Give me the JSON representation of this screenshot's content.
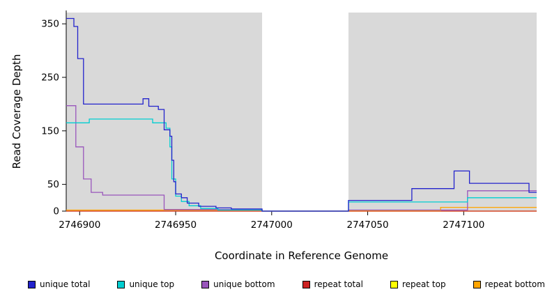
{
  "chart_data": {
    "type": "line",
    "title": "",
    "xlabel": "Coordinate in Reference Genome",
    "ylabel": "Read Coverage Depth",
    "xlim": [
      2746893,
      2747138
    ],
    "ylim": [
      0,
      375
    ],
    "grid": false,
    "legend_position": "bottom",
    "band_color": "#d9d9d9",
    "bands": [
      {
        "x1": 2746893,
        "x2": 2746995
      },
      {
        "x1": 2747040,
        "x2": 2747138
      }
    ],
    "xticks": [
      {
        "value": 2746900,
        "label": "2746900"
      },
      {
        "value": 2746950,
        "label": "2746950"
      },
      {
        "value": 2747000,
        "label": "2747000"
      },
      {
        "value": 2747050,
        "label": "2747050"
      },
      {
        "value": 2747100,
        "label": "2747100"
      }
    ],
    "yticks": [
      {
        "value": 0,
        "label": "0"
      },
      {
        "value": 50,
        "label": "50"
      },
      {
        "value": 150,
        "label": "150"
      },
      {
        "value": 250,
        "label": "250"
      },
      {
        "value": 350,
        "label": "350"
      }
    ],
    "series": [
      {
        "id": "repeat-top",
        "name": "repeat top",
        "color": "#ffff00",
        "points": [
          [
            2746893,
            0
          ],
          [
            2747138,
            0
          ]
        ]
      },
      {
        "id": "repeat-total",
        "name": "repeat total",
        "color": "#cc2222",
        "points": [
          [
            2746893,
            0
          ],
          [
            2747138,
            0
          ]
        ]
      },
      {
        "id": "repeat-bottom",
        "name": "repeat bottom",
        "color": "#ffa500",
        "points": [
          [
            2746893,
            2
          ],
          [
            2746995,
            2
          ],
          [
            2746995,
            0
          ],
          [
            2747040,
            0
          ],
          [
            2747040,
            1
          ],
          [
            2747088,
            1
          ],
          [
            2747088,
            7
          ],
          [
            2747138,
            7
          ]
        ]
      },
      {
        "id": "unique-bottom",
        "name": "unique bottom",
        "color": "#9955bb",
        "points": [
          [
            2746893,
            197
          ],
          [
            2746898,
            197
          ],
          [
            2746898,
            120
          ],
          [
            2746902,
            120
          ],
          [
            2746902,
            60
          ],
          [
            2746906,
            60
          ],
          [
            2746906,
            35
          ],
          [
            2746912,
            35
          ],
          [
            2746912,
            30
          ],
          [
            2746944,
            30
          ],
          [
            2746944,
            3
          ],
          [
            2746995,
            3
          ],
          [
            2746995,
            0
          ],
          [
            2747040,
            0
          ],
          [
            2747040,
            2
          ],
          [
            2747102,
            2
          ],
          [
            2747102,
            38
          ],
          [
            2747138,
            38
          ]
        ]
      },
      {
        "id": "unique-top",
        "name": "unique top",
        "color": "#00ced1",
        "points": [
          [
            2746893,
            165
          ],
          [
            2746905,
            165
          ],
          [
            2746905,
            172
          ],
          [
            2746938,
            172
          ],
          [
            2746938,
            165
          ],
          [
            2746945,
            165
          ],
          [
            2746945,
            155
          ],
          [
            2746947,
            155
          ],
          [
            2746947,
            120
          ],
          [
            2746948,
            120
          ],
          [
            2746948,
            60
          ],
          [
            2746950,
            60
          ],
          [
            2746950,
            28
          ],
          [
            2746953,
            28
          ],
          [
            2746953,
            18
          ],
          [
            2746957,
            18
          ],
          [
            2746957,
            10
          ],
          [
            2746963,
            10
          ],
          [
            2746963,
            5
          ],
          [
            2746972,
            5
          ],
          [
            2746972,
            2
          ],
          [
            2746995,
            2
          ],
          [
            2746995,
            0
          ],
          [
            2747040,
            0
          ],
          [
            2747040,
            17
          ],
          [
            2747102,
            17
          ],
          [
            2747102,
            25
          ],
          [
            2747138,
            25
          ]
        ]
      },
      {
        "id": "unique-total",
        "name": "unique total",
        "color": "#2222cc",
        "points": [
          [
            2746893,
            360
          ],
          [
            2746897,
            360
          ],
          [
            2746897,
            345
          ],
          [
            2746899,
            345
          ],
          [
            2746899,
            285
          ],
          [
            2746902,
            285
          ],
          [
            2746902,
            200
          ],
          [
            2746933,
            200
          ],
          [
            2746933,
            210
          ],
          [
            2746936,
            210
          ],
          [
            2746936,
            196
          ],
          [
            2746941,
            196
          ],
          [
            2746941,
            190
          ],
          [
            2746944,
            190
          ],
          [
            2746944,
            152
          ],
          [
            2746947,
            152
          ],
          [
            2746947,
            140
          ],
          [
            2746948,
            140
          ],
          [
            2746948,
            95
          ],
          [
            2746949,
            95
          ],
          [
            2746949,
            55
          ],
          [
            2746950,
            55
          ],
          [
            2746950,
            32
          ],
          [
            2746953,
            32
          ],
          [
            2746953,
            25
          ],
          [
            2746956,
            25
          ],
          [
            2746956,
            15
          ],
          [
            2746962,
            15
          ],
          [
            2746962,
            9
          ],
          [
            2746971,
            9
          ],
          [
            2746971,
            6
          ],
          [
            2746979,
            6
          ],
          [
            2746979,
            4
          ],
          [
            2746995,
            4
          ],
          [
            2746995,
            0
          ],
          [
            2747040,
            0
          ],
          [
            2747040,
            20
          ],
          [
            2747073,
            20
          ],
          [
            2747073,
            42
          ],
          [
            2747095,
            42
          ],
          [
            2747095,
            75
          ],
          [
            2747103,
            75
          ],
          [
            2747103,
            52
          ],
          [
            2747134,
            52
          ],
          [
            2747134,
            35
          ],
          [
            2747138,
            35
          ]
        ]
      }
    ]
  },
  "legend": {
    "items": [
      {
        "label": "unique total",
        "color": "#2222cc"
      },
      {
        "label": "unique top",
        "color": "#00ced1"
      },
      {
        "label": "unique bottom",
        "color": "#9955bb"
      },
      {
        "label": "repeat total",
        "color": "#cc2222"
      },
      {
        "label": "repeat top",
        "color": "#ffff00"
      },
      {
        "label": "repeat bottom",
        "color": "#ffa500"
      }
    ]
  }
}
